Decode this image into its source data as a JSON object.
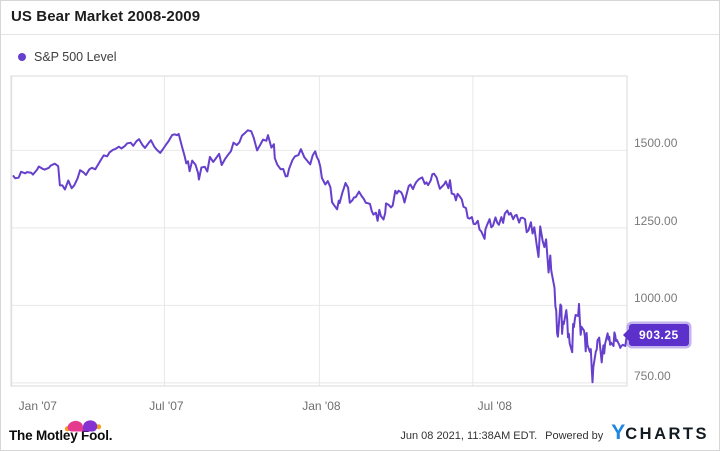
{
  "header": {
    "title": "US Bear Market 2008-2009"
  },
  "legend": {
    "label": "S&P 500 Level"
  },
  "badge": {
    "value": "903.25"
  },
  "footer": {
    "brand": "The Motley Fool.",
    "timestamp": "Jun 08 2021, 11:38AM EDT.",
    "powered_by": "Powered by",
    "ycharts_y": "Y",
    "ycharts_rest": "CHARTS"
  },
  "colors": {
    "line": "#6640cc",
    "badge_bg": "#5c30ca",
    "grid": "#e8e8e8",
    "plot_border": "#d9d9d9",
    "axis_text": "#757575",
    "ycharts_blue": "#1e87e4",
    "tmf_pink": "#e63a8f",
    "tmf_purple": "#8632d2",
    "tmf_gold": "#f6a11e"
  },
  "chart_data": {
    "type": "line",
    "title": "US Bear Market 2008-2009",
    "xlabel": "",
    "ylabel": "",
    "grid": true,
    "legend_position": "top-left",
    "series": [
      {
        "name": "S&P 500 Level",
        "color": "#6640cc"
      }
    ],
    "last_value": 903.25,
    "last_value_label": "903.25",
    "x_axis": {
      "range_days": [
        0,
        731
      ],
      "epoch": "days since Dec 31 2006",
      "ticks": [
        {
          "label": "Jan '07",
          "day": 1
        },
        {
          "label": "Jul '07",
          "day": 182
        },
        {
          "label": "Jan '08",
          "day": 366
        },
        {
          "label": "Jul '08",
          "day": 548
        }
      ]
    },
    "y_axis": {
      "range": [
        740,
        1740
      ],
      "ticks": [
        {
          "label": "1500.00",
          "value": 1500
        },
        {
          "label": "1250.00",
          "value": 1250
        },
        {
          "label": "1000.00",
          "value": 1000
        },
        {
          "label": "750.00",
          "value": 750
        }
      ]
    },
    "points": [
      [
        3,
        1417
      ],
      [
        5,
        1410
      ],
      [
        9,
        1412
      ],
      [
        12,
        1431
      ],
      [
        17,
        1426
      ],
      [
        19,
        1430
      ],
      [
        24,
        1428
      ],
      [
        26,
        1422
      ],
      [
        31,
        1438
      ],
      [
        33,
        1448
      ],
      [
        38,
        1440
      ],
      [
        40,
        1438
      ],
      [
        45,
        1444
      ],
      [
        47,
        1451
      ],
      [
        52,
        1457
      ],
      [
        56,
        1449
      ],
      [
        58,
        1387
      ],
      [
        61,
        1387
      ],
      [
        64,
        1374
      ],
      [
        68,
        1403
      ],
      [
        72,
        1378
      ],
      [
        75,
        1387
      ],
      [
        79,
        1410
      ],
      [
        82,
        1436
      ],
      [
        86,
        1429
      ],
      [
        89,
        1421
      ],
      [
        93,
        1439
      ],
      [
        96,
        1444
      ],
      [
        100,
        1439
      ],
      [
        103,
        1453
      ],
      [
        107,
        1471
      ],
      [
        110,
        1484
      ],
      [
        114,
        1481
      ],
      [
        117,
        1494
      ],
      [
        121,
        1502
      ],
      [
        124,
        1505
      ],
      [
        128,
        1512
      ],
      [
        131,
        1506
      ],
      [
        135,
        1514
      ],
      [
        138,
        1523
      ],
      [
        142,
        1525
      ],
      [
        145,
        1515
      ],
      [
        149,
        1530
      ],
      [
        152,
        1536
      ],
      [
        156,
        1517
      ],
      [
        159,
        1508
      ],
      [
        163,
        1523
      ],
      [
        166,
        1533
      ],
      [
        170,
        1512
      ],
      [
        173,
        1502
      ],
      [
        177,
        1492
      ],
      [
        180,
        1503
      ],
      [
        184,
        1519
      ],
      [
        187,
        1530
      ],
      [
        191,
        1549
      ],
      [
        194,
        1552
      ],
      [
        197,
        1549
      ],
      [
        199,
        1553
      ],
      [
        203,
        1511
      ],
      [
        206,
        1482
      ],
      [
        208,
        1458
      ],
      [
        210,
        1465
      ],
      [
        212,
        1433
      ],
      [
        215,
        1467
      ],
      [
        219,
        1454
      ],
      [
        222,
        1426
      ],
      [
        223,
        1406
      ],
      [
        226,
        1445
      ],
      [
        230,
        1447
      ],
      [
        233,
        1432
      ],
      [
        236,
        1479
      ],
      [
        240,
        1463
      ],
      [
        243,
        1474
      ],
      [
        247,
        1489
      ],
      [
        250,
        1453
      ],
      [
        254,
        1472
      ],
      [
        257,
        1484
      ],
      [
        261,
        1497
      ],
      [
        264,
        1525
      ],
      [
        268,
        1517
      ],
      [
        271,
        1526
      ],
      [
        274,
        1547
      ],
      [
        278,
        1557
      ],
      [
        281,
        1565
      ],
      [
        285,
        1562
      ],
      [
        288,
        1541
      ],
      [
        292,
        1500
      ],
      [
        296,
        1519
      ],
      [
        299,
        1535
      ],
      [
        303,
        1531
      ],
      [
        305,
        1549
      ],
      [
        309,
        1509
      ],
      [
        312,
        1520
      ],
      [
        313,
        1475
      ],
      [
        316,
        1454
      ],
      [
        320,
        1439
      ],
      [
        323,
        1440
      ],
      [
        326,
        1416
      ],
      [
        328,
        1417
      ],
      [
        330,
        1441
      ],
      [
        334,
        1469
      ],
      [
        337,
        1481
      ],
      [
        341,
        1485
      ],
      [
        344,
        1504
      ],
      [
        348,
        1478
      ],
      [
        351,
        1468
      ],
      [
        355,
        1455
      ],
      [
        358,
        1484
      ],
      [
        361,
        1497
      ],
      [
        363,
        1478
      ],
      [
        365,
        1468
      ],
      [
        367,
        1447
      ],
      [
        369,
        1411
      ],
      [
        373,
        1390
      ],
      [
        376,
        1401
      ],
      [
        379,
        1381
      ],
      [
        381,
        1333
      ],
      [
        383,
        1325
      ],
      [
        387,
        1310
      ],
      [
        389,
        1338
      ],
      [
        390,
        1330
      ],
      [
        393,
        1362
      ],
      [
        395,
        1378
      ],
      [
        397,
        1395
      ],
      [
        400,
        1380
      ],
      [
        402,
        1331
      ],
      [
        405,
        1339
      ],
      [
        407,
        1348
      ],
      [
        409,
        1349
      ],
      [
        413,
        1367
      ],
      [
        416,
        1353
      ],
      [
        419,
        1342
      ],
      [
        421,
        1331
      ],
      [
        423,
        1330
      ],
      [
        426,
        1327
      ],
      [
        428,
        1305
      ],
      [
        430,
        1293
      ],
      [
        433,
        1299
      ],
      [
        435,
        1273
      ],
      [
        437,
        1308
      ],
      [
        439,
        1288
      ],
      [
        442,
        1277
      ],
      [
        444,
        1298
      ],
      [
        445,
        1329
      ],
      [
        448,
        1325
      ],
      [
        451,
        1316
      ],
      [
        453,
        1322
      ],
      [
        456,
        1370
      ],
      [
        458,
        1361
      ],
      [
        460,
        1370
      ],
      [
        463,
        1365
      ],
      [
        465,
        1354
      ],
      [
        467,
        1332
      ],
      [
        470,
        1365
      ],
      [
        472,
        1385
      ],
      [
        474,
        1390
      ],
      [
        477,
        1375
      ],
      [
        479,
        1388
      ],
      [
        481,
        1398
      ],
      [
        484,
        1407
      ],
      [
        486,
        1410
      ],
      [
        488,
        1413
      ],
      [
        491,
        1392
      ],
      [
        493,
        1397
      ],
      [
        495,
        1388
      ],
      [
        498,
        1403
      ],
      [
        500,
        1423
      ],
      [
        502,
        1425
      ],
      [
        505,
        1413
      ],
      [
        507,
        1394
      ],
      [
        509,
        1376
      ],
      [
        512,
        1385
      ],
      [
        514,
        1390
      ],
      [
        516,
        1400
      ],
      [
        519,
        1378
      ],
      [
        521,
        1404
      ],
      [
        523,
        1361
      ],
      [
        526,
        1358
      ],
      [
        528,
        1339
      ],
      [
        530,
        1360
      ],
      [
        533,
        1350
      ],
      [
        535,
        1342
      ],
      [
        537,
        1318
      ],
      [
        540,
        1314
      ],
      [
        542,
        1283
      ],
      [
        544,
        1280
      ],
      [
        547,
        1285
      ],
      [
        549,
        1263
      ],
      [
        551,
        1262
      ],
      [
        554,
        1273
      ],
      [
        556,
        1245
      ],
      [
        558,
        1239
      ],
      [
        562,
        1215
      ],
      [
        563,
        1245
      ],
      [
        565,
        1260
      ],
      [
        568,
        1278
      ],
      [
        570,
        1252
      ],
      [
        572,
        1257
      ],
      [
        575,
        1284
      ],
      [
        577,
        1267
      ],
      [
        579,
        1260
      ],
      [
        582,
        1285
      ],
      [
        584,
        1266
      ],
      [
        586,
        1296
      ],
      [
        589,
        1306
      ],
      [
        591,
        1293
      ],
      [
        593,
        1298
      ],
      [
        596,
        1278
      ],
      [
        598,
        1289
      ],
      [
        600,
        1292
      ],
      [
        603,
        1267
      ],
      [
        605,
        1282
      ],
      [
        607,
        1283
      ],
      [
        610,
        1278
      ],
      [
        612,
        1236
      ],
      [
        614,
        1242
      ],
      [
        617,
        1268
      ],
      [
        619,
        1232
      ],
      [
        621,
        1252
      ],
      [
        624,
        1193
      ],
      [
        626,
        1156
      ],
      [
        628,
        1255
      ],
      [
        631,
        1207
      ],
      [
        633,
        1188
      ],
      [
        635,
        1213
      ],
      [
        638,
        1106
      ],
      [
        640,
        1161
      ],
      [
        641,
        1114
      ],
      [
        642,
        1099
      ],
      [
        645,
        1057
      ],
      [
        646,
        996
      ],
      [
        647,
        985
      ],
      [
        648,
        910
      ],
      [
        649,
        899
      ],
      [
        652,
        1003
      ],
      [
        653,
        998
      ],
      [
        654,
        908
      ],
      [
        655,
        947
      ],
      [
        656,
        940
      ],
      [
        659,
        985
      ],
      [
        660,
        955
      ],
      [
        661,
        897
      ],
      [
        662,
        908
      ],
      [
        663,
        877
      ],
      [
        666,
        849
      ],
      [
        667,
        940
      ],
      [
        668,
        930
      ],
      [
        669,
        954
      ],
      [
        670,
        969
      ],
      [
        673,
        966
      ],
      [
        674,
        1005
      ],
      [
        675,
        953
      ],
      [
        676,
        905
      ],
      [
        677,
        931
      ],
      [
        680,
        919
      ],
      [
        681,
        899
      ],
      [
        682,
        852
      ],
      [
        683,
        911
      ],
      [
        684,
        873
      ],
      [
        687,
        850
      ],
      [
        688,
        859
      ],
      [
        689,
        806
      ],
      [
        690,
        752
      ],
      [
        691,
        800
      ],
      [
        694,
        851
      ],
      [
        695,
        857
      ],
      [
        696,
        887
      ],
      [
        698,
        896
      ],
      [
        701,
        816
      ],
      [
        702,
        849
      ],
      [
        703,
        871
      ],
      [
        704,
        845
      ],
      [
        705,
        876
      ],
      [
        708,
        910
      ],
      [
        709,
        889
      ],
      [
        710,
        899
      ],
      [
        711,
        873
      ],
      [
        712,
        880
      ],
      [
        715,
        869
      ],
      [
        716,
        913
      ],
      [
        717,
        904
      ],
      [
        718,
        885
      ],
      [
        719,
        888
      ],
      [
        722,
        872
      ],
      [
        723,
        863
      ],
      [
        724,
        868
      ],
      [
        726,
        873
      ],
      [
        729,
        869
      ],
      [
        730,
        890
      ],
      [
        731,
        903.25
      ]
    ]
  }
}
